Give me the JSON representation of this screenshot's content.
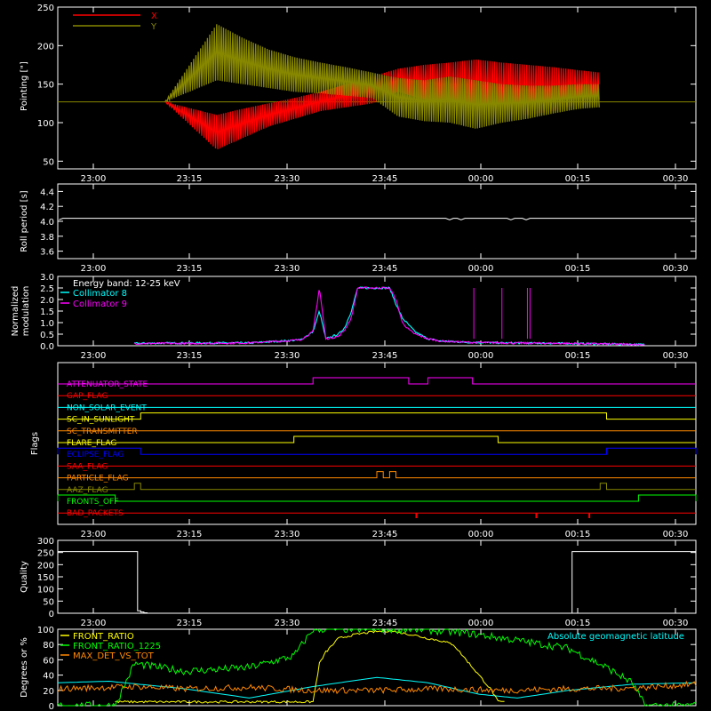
{
  "chart_data": [
    {
      "id": "pointing",
      "type": "line",
      "ylabel": "Pointing [\"]",
      "ylim": [
        40,
        250
      ],
      "yticks": [
        50,
        100,
        150,
        200,
        250
      ],
      "xticks": [
        "23:00",
        "23:15",
        "23:30",
        "23:45",
        "00:00",
        "00:15",
        "00:30"
      ],
      "legend": "top-left",
      "series": [
        {
          "name": "X",
          "color": "#ff0000",
          "envelope_x": [
            0,
            10,
            15,
            20,
            25,
            30,
            35,
            40,
            45,
            50,
            55,
            60,
            65,
            70,
            75,
            80,
            84
          ],
          "low": [
            127,
            65,
            80,
            95,
            105,
            115,
            120,
            125,
            140,
            130,
            120,
            118,
            112,
            110,
            115,
            125,
            130
          ],
          "high": [
            127,
            110,
            118,
            125,
            132,
            140,
            150,
            160,
            170,
            175,
            178,
            182,
            178,
            175,
            172,
            168,
            165
          ]
        },
        {
          "name": "Y",
          "color": "#888800",
          "envelope_x": [
            0,
            10,
            15,
            20,
            25,
            30,
            35,
            40,
            45,
            50,
            55,
            60,
            65,
            70,
            75,
            80,
            84
          ],
          "low": [
            127,
            155,
            150,
            145,
            140,
            138,
            135,
            132,
            108,
            102,
            100,
            92,
            100,
            105,
            112,
            118,
            120
          ],
          "high": [
            127,
            228,
            210,
            195,
            185,
            178,
            172,
            165,
            158,
            155,
            160,
            155,
            150,
            148,
            148,
            150,
            150
          ]
        }
      ],
      "baseline": 127
    },
    {
      "id": "roll",
      "type": "line",
      "ylabel": "Roll period [s]",
      "ylim": [
        3.5,
        4.5
      ],
      "yticks": [
        3.6,
        3.8,
        4.0,
        4.2,
        4.4
      ],
      "xticks": [
        "23:00",
        "23:15",
        "23:30",
        "23:45",
        "00:00",
        "00:15",
        "00:30"
      ],
      "series": [
        {
          "name": "",
          "color": "#ffffff",
          "value": 4.04
        }
      ]
    },
    {
      "id": "modulation",
      "type": "line",
      "ylabel": "Normalized modulation",
      "ylim": [
        0,
        3.0
      ],
      "yticks": [
        0.0,
        0.5,
        1.0,
        1.5,
        2.0,
        2.5,
        3.0
      ],
      "xticks": [
        "23:00",
        "23:15",
        "23:30",
        "23:45",
        "00:00",
        "00:15",
        "00:30"
      ],
      "legend": "top-left",
      "legend_title": "Energy band: 12-25 keV",
      "series": [
        {
          "name": "Collimator 8",
          "color": "#00ffff",
          "x": [
            12,
            20,
            30,
            38,
            40,
            41,
            42,
            44,
            45,
            46,
            47,
            48,
            50,
            52,
            53,
            54,
            55,
            56,
            58,
            60,
            64,
            70,
            80,
            92
          ],
          "y": [
            0.1,
            0.12,
            0.12,
            0.25,
            0.6,
            1.5,
            0.3,
            0.5,
            0.8,
            1.5,
            2.5,
            2.5,
            2.5,
            2.5,
            1.8,
            1.2,
            0.9,
            0.6,
            0.3,
            0.2,
            0.15,
            0.12,
            0.1,
            0.05
          ]
        },
        {
          "name": "Collimator 9",
          "color": "#ff00ff",
          "x": [
            12,
            20,
            30,
            38,
            40,
            41,
            42,
            44,
            45,
            46,
            47,
            48,
            50,
            52,
            53,
            54,
            55,
            56,
            58,
            60,
            64,
            70,
            80,
            92
          ],
          "y": [
            0.1,
            0.1,
            0.12,
            0.25,
            0.6,
            2.5,
            0.3,
            0.4,
            0.7,
            1.2,
            2.5,
            2.5,
            2.5,
            2.5,
            2.0,
            1.0,
            0.7,
            0.5,
            0.3,
            0.2,
            0.15,
            0.12,
            0.1,
            0.05
          ]
        }
      ]
    },
    {
      "id": "flags",
      "type": "line",
      "ylabel": "Flags",
      "xticks": [
        "23:00",
        "23:15",
        "23:30",
        "23:45",
        "00:00",
        "00:15",
        "00:30"
      ],
      "flags": [
        {
          "name": "ATTENUATOR_STATE",
          "color": "#ff00ff",
          "on": [
            [
              40,
              55
            ],
            [
              58,
              65
            ]
          ]
        },
        {
          "name": "GAP_FLAG",
          "color": "#ff0000",
          "on": []
        },
        {
          "name": "NON_SOLAR_EVENT",
          "color": "#00ffff",
          "on": []
        },
        {
          "name": "SC_IN_SUNLIGHT",
          "color": "#ffff00",
          "on": [
            [
              13,
              86
            ]
          ]
        },
        {
          "name": "SC_TRANSMITTER",
          "color": "#ff8800",
          "on": []
        },
        {
          "name": "FLARE_FLAG",
          "color": "#ffff00",
          "on": [
            [
              37,
              69
            ]
          ]
        },
        {
          "name": "ECLIPSE_FLAG",
          "color": "#0000ff",
          "on": [
            [
              0,
              13
            ],
            [
              86,
              100
            ]
          ]
        },
        {
          "name": "SAA_FLAG",
          "color": "#ff0000",
          "on": []
        },
        {
          "name": "PARTICLE_FLAG",
          "color": "#ff8800",
          "on": [
            [
              50,
              51
            ],
            [
              52,
              53
            ]
          ]
        },
        {
          "name": "AAZ_FLAG",
          "color": "#888800",
          "on": [
            [
              12,
              13
            ],
            [
              85,
              86
            ]
          ]
        },
        {
          "name": "FRONTS_OFF",
          "color": "#00ff00",
          "on": [
            [
              0,
              9
            ],
            [
              91,
              100
            ]
          ]
        },
        {
          "name": "BAD_PACKETS",
          "color": "#ff0000",
          "on": []
        }
      ]
    },
    {
      "id": "quality",
      "type": "line",
      "ylabel": "Quality",
      "ylim": [
        0,
        300
      ],
      "yticks": [
        0,
        50,
        100,
        150,
        200,
        250,
        300
      ],
      "xticks": [
        "23:00",
        "23:15",
        "23:30",
        "23:45",
        "00:00",
        "00:15",
        "00:30"
      ],
      "series": [
        {
          "name": "",
          "color": "#ffffff",
          "x": [
            0,
            12.3,
            12.5,
            13,
            13.5,
            14,
            80.5,
            80.6,
            100
          ],
          "y": [
            254,
            254,
            10,
            5,
            2,
            0,
            0,
            254,
            254
          ]
        }
      ]
    },
    {
      "id": "ratios",
      "type": "line",
      "ylabel": "Degrees or %",
      "ylim": [
        0,
        100
      ],
      "yticks": [
        0,
        20,
        40,
        60,
        80,
        100
      ],
      "legend": "top-left",
      "series": [
        {
          "name": "FRONT_RATIO",
          "color": "#ffff00",
          "x": [
            9,
            40,
            41,
            42,
            44,
            46,
            48,
            50,
            52,
            54,
            56,
            58,
            60,
            62,
            64,
            66,
            68,
            69,
            70
          ],
          "y": [
            5,
            5,
            55,
            70,
            88,
            92,
            95,
            97,
            98,
            95,
            92,
            88,
            85,
            80,
            60,
            40,
            20,
            5,
            5
          ]
        },
        {
          "name": "FRONT_RATIO_1225",
          "color": "#00ff00",
          "x": [
            0,
            9,
            12,
            20,
            30,
            37,
            40,
            42,
            50,
            56,
            64,
            70,
            80,
            86,
            90,
            92,
            100
          ],
          "y": [
            0,
            0,
            55,
            45,
            50,
            65,
            100,
            100,
            100,
            100,
            95,
            88,
            75,
            50,
            30,
            0,
            0
          ]
        },
        {
          "name": "MAX_DET_VS_TOT",
          "color": "#ff8800",
          "x": [
            0,
            12,
            20,
            30,
            40,
            50,
            60,
            70,
            80,
            90,
            100
          ],
          "y": [
            22,
            25,
            22,
            24,
            20,
            20,
            22,
            20,
            22,
            23,
            28
          ]
        }
      ],
      "annotation": {
        "text": "Absolute geomagnetic latitude",
        "color": "#00ffff"
      },
      "latitude": {
        "x": [
          0,
          8,
          20,
          30,
          40,
          50,
          58,
          66,
          72,
          80,
          90,
          100
        ],
        "y": [
          30,
          32,
          22,
          10,
          25,
          37,
          30,
          15,
          10,
          20,
          28,
          30
        ]
      }
    }
  ]
}
